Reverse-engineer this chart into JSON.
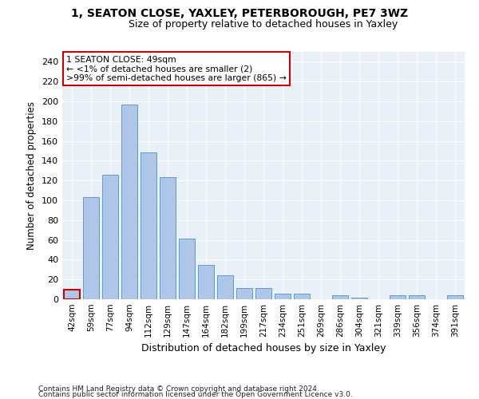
{
  "title_line1": "1, SEATON CLOSE, YAXLEY, PETERBOROUGH, PE7 3WZ",
  "title_line2": "Size of property relative to detached houses in Yaxley",
  "xlabel": "Distribution of detached houses by size in Yaxley",
  "ylabel": "Number of detached properties",
  "categories": [
    "42sqm",
    "59sqm",
    "77sqm",
    "94sqm",
    "112sqm",
    "129sqm",
    "147sqm",
    "164sqm",
    "182sqm",
    "199sqm",
    "217sqm",
    "234sqm",
    "251sqm",
    "269sqm",
    "286sqm",
    "304sqm",
    "321sqm",
    "339sqm",
    "356sqm",
    "374sqm",
    "391sqm"
  ],
  "values": [
    10,
    103,
    126,
    197,
    148,
    123,
    61,
    35,
    24,
    11,
    11,
    6,
    6,
    0,
    4,
    2,
    0,
    4,
    4,
    0,
    4
  ],
  "bar_color": "#aec6e8",
  "bar_edge_color": "#5b9bd5",
  "highlight_bar_index": 0,
  "highlight_bar_edge_color": "#cc0000",
  "annotation_text_line1": "1 SEATON CLOSE: 49sqm",
  "annotation_text_line2": "← <1% of detached houses are smaller (2)",
  "annotation_text_line3": ">99% of semi-detached houses are larger (865) →",
  "annotation_box_edge_color": "#cc0000",
  "ylim": [
    0,
    250
  ],
  "yticks": [
    0,
    20,
    40,
    60,
    80,
    100,
    120,
    140,
    160,
    180,
    200,
    220,
    240
  ],
  "background_color": "#eaf0f8",
  "grid_color": "#ffffff",
  "fig_background": "#ffffff",
  "footer_line1": "Contains HM Land Registry data © Crown copyright and database right 2024.",
  "footer_line2": "Contains public sector information licensed under the Open Government Licence v3.0."
}
